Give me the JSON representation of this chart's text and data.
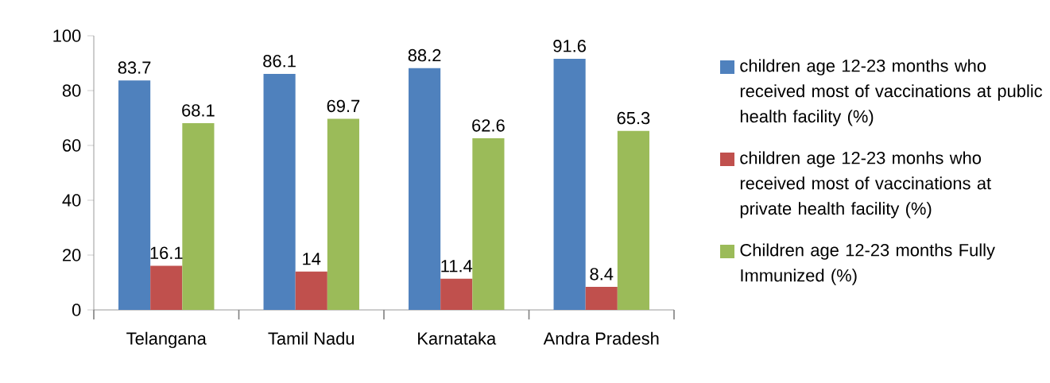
{
  "chart_data": {
    "type": "bar",
    "categories": [
      "Telangana",
      "Tamil Nadu",
      "Karnataka",
      "Andra Pradesh"
    ],
    "series": [
      {
        "name": "children age 12-23 months who received most of vaccinations at public health facility (%)",
        "color": "#4f81bd",
        "values": [
          83.7,
          86.1,
          88.2,
          91.6
        ]
      },
      {
        "name": "children age 12-23 monhs who received most of vaccinations at private health facility (%)",
        "color": "#c0504d",
        "values": [
          16.1,
          14,
          11.4,
          8.4
        ]
      },
      {
        "name": "Children age 12-23 months Fully Immunized (%)",
        "color": "#9bbb59",
        "values": [
          68.1,
          69.7,
          62.6,
          65.3
        ]
      }
    ],
    "ylim": [
      0,
      100
    ],
    "yticks": [
      0,
      20,
      40,
      60,
      80,
      100
    ],
    "data_labels": true,
    "legend": "right",
    "grid": false
  }
}
